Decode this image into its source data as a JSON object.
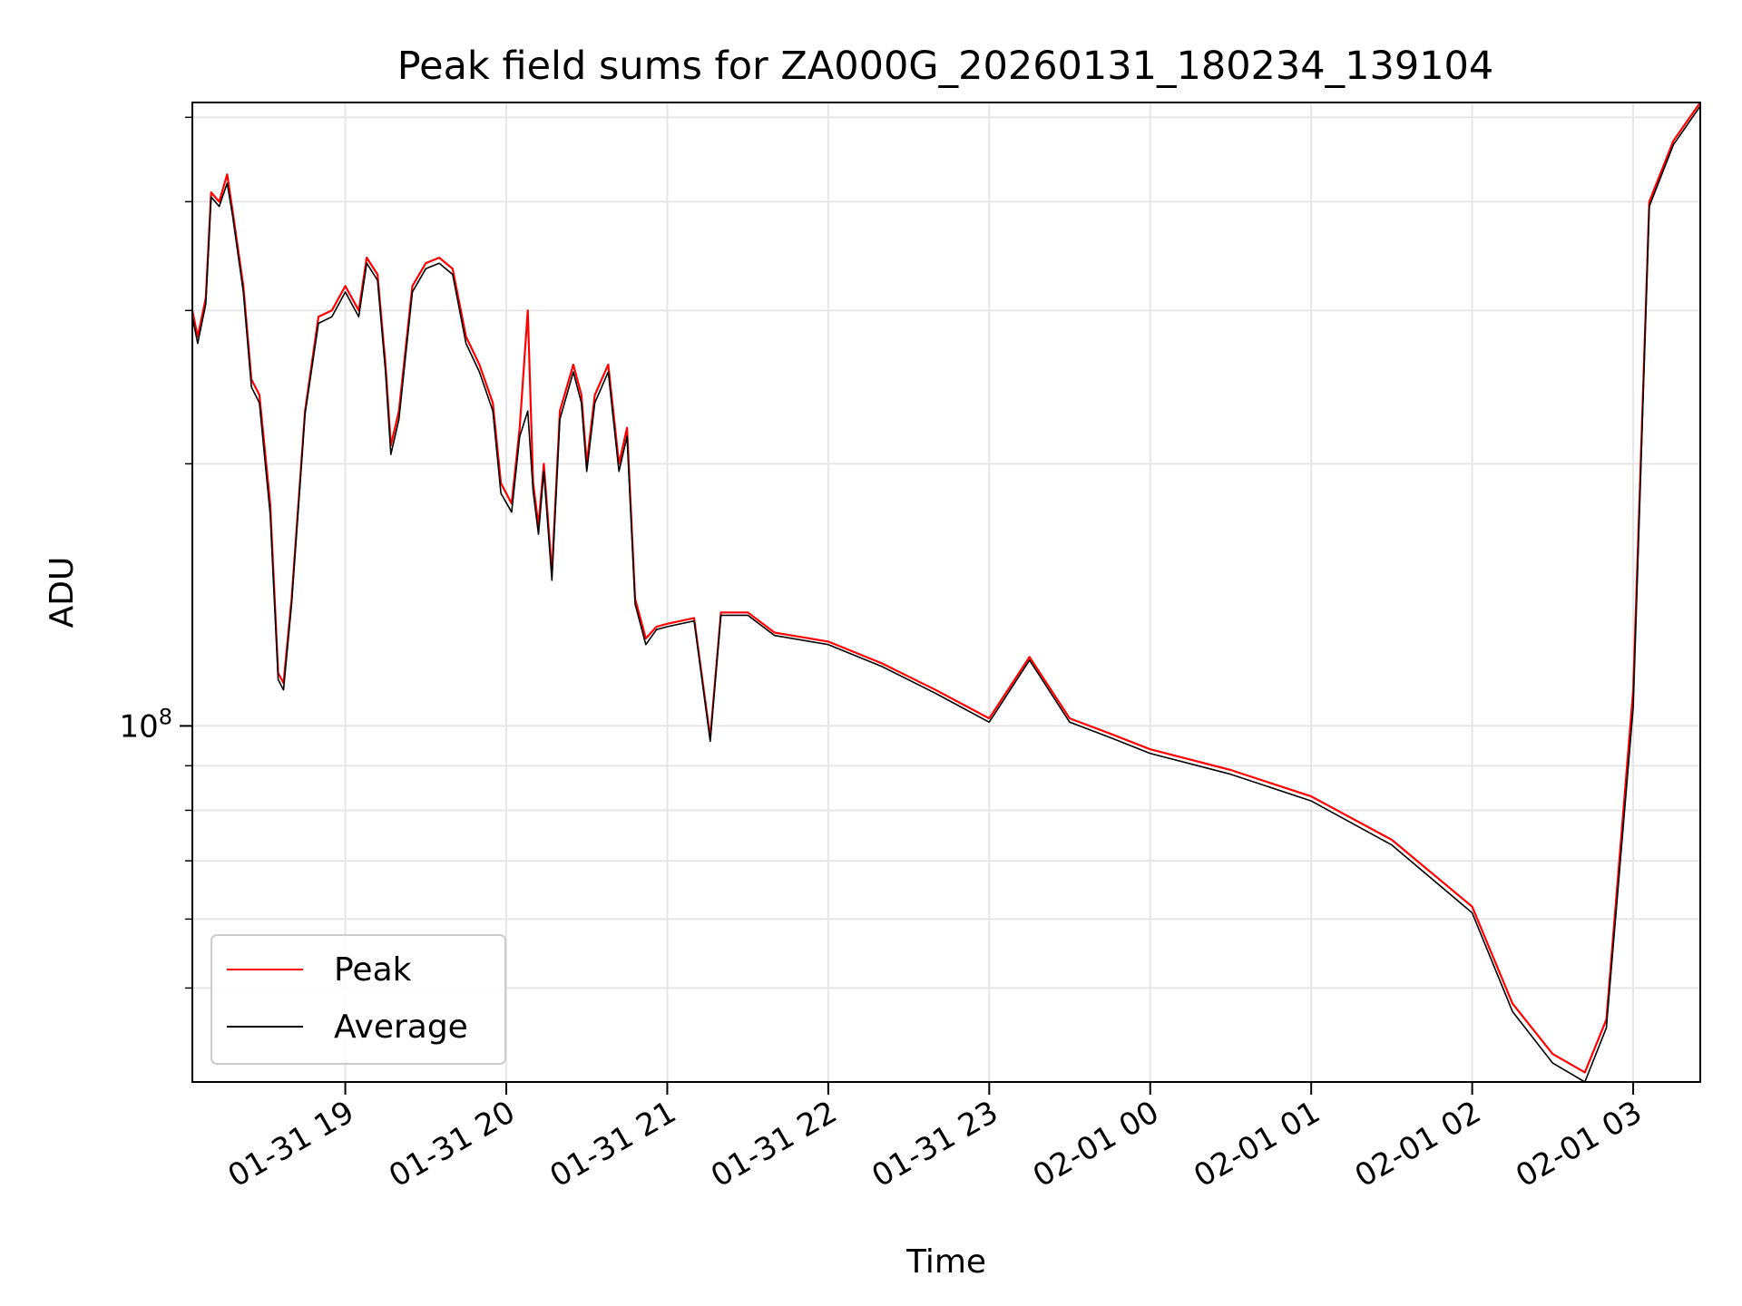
{
  "chart_data": {
    "type": "line",
    "title": "Peak field sums for ZA000G_20260131_180234_139104",
    "xlabel": "Time",
    "ylabel": "ADU",
    "yscale": "log",
    "grid": true,
    "legend_position": "lower-left",
    "xlim": [
      "2026-01-31 18:03",
      "2026-02-01 03:25"
    ],
    "ylim": [
      39000000,
      520000000
    ],
    "x_ticks": [
      {
        "value": "2026-01-31 19:00",
        "label": "01-31 19"
      },
      {
        "value": "2026-01-31 20:00",
        "label": "01-31 20"
      },
      {
        "value": "2026-01-31 21:00",
        "label": "01-31 21"
      },
      {
        "value": "2026-01-31 22:00",
        "label": "01-31 22"
      },
      {
        "value": "2026-01-31 23:00",
        "label": "01-31 23"
      },
      {
        "value": "2026-02-01 00:00",
        "label": "02-01 00"
      },
      {
        "value": "2026-02-01 01:00",
        "label": "02-01 01"
      },
      {
        "value": "2026-02-01 02:00",
        "label": "02-01 02"
      },
      {
        "value": "2026-02-01 03:00",
        "label": "02-01 03"
      }
    ],
    "y_major_ticks": [
      {
        "value": 100000000,
        "label_base": "10",
        "label_exp": "8"
      }
    ],
    "y_minor_ticks": [
      50000000,
      60000000,
      70000000,
      80000000,
      90000000,
      200000000,
      300000000,
      400000000,
      500000000
    ],
    "series": [
      {
        "name": "Peak",
        "color": "#ff0000",
        "points": [
          [
            "2026-01-31 18:03",
            300000000
          ],
          [
            "2026-01-31 18:05",
            280000000
          ],
          [
            "2026-01-31 18:08",
            310000000
          ],
          [
            "2026-01-31 18:10",
            410000000
          ],
          [
            "2026-01-31 18:13",
            400000000
          ],
          [
            "2026-01-31 18:16",
            430000000
          ],
          [
            "2026-01-31 18:18",
            390000000
          ],
          [
            "2026-01-31 18:22",
            320000000
          ],
          [
            "2026-01-31 18:25",
            250000000
          ],
          [
            "2026-01-31 18:28",
            240000000
          ],
          [
            "2026-01-31 18:32",
            180000000
          ],
          [
            "2026-01-31 18:35",
            115000000
          ],
          [
            "2026-01-31 18:37",
            112000000
          ],
          [
            "2026-01-31 18:40",
            140000000
          ],
          [
            "2026-01-31 18:45",
            230000000
          ],
          [
            "2026-01-31 18:50",
            295000000
          ],
          [
            "2026-01-31 18:55",
            300000000
          ],
          [
            "2026-01-31 19:00",
            320000000
          ],
          [
            "2026-01-31 19:05",
            300000000
          ],
          [
            "2026-01-31 19:08",
            345000000
          ],
          [
            "2026-01-31 19:12",
            330000000
          ],
          [
            "2026-01-31 19:15",
            260000000
          ],
          [
            "2026-01-31 19:17",
            210000000
          ],
          [
            "2026-01-31 19:20",
            230000000
          ],
          [
            "2026-01-31 19:25",
            320000000
          ],
          [
            "2026-01-31 19:30",
            340000000
          ],
          [
            "2026-01-31 19:35",
            345000000
          ],
          [
            "2026-01-31 19:40",
            335000000
          ],
          [
            "2026-01-31 19:45",
            280000000
          ],
          [
            "2026-01-31 19:50",
            260000000
          ],
          [
            "2026-01-31 19:55",
            235000000
          ],
          [
            "2026-01-31 19:58",
            190000000
          ],
          [
            "2026-01-31 20:02",
            180000000
          ],
          [
            "2026-01-31 20:05",
            220000000
          ],
          [
            "2026-01-31 20:08",
            300000000
          ],
          [
            "2026-01-31 20:10",
            190000000
          ],
          [
            "2026-01-31 20:12",
            170000000
          ],
          [
            "2026-01-31 20:14",
            200000000
          ],
          [
            "2026-01-31 20:17",
            150000000
          ],
          [
            "2026-01-31 20:20",
            230000000
          ],
          [
            "2026-01-31 20:25",
            260000000
          ],
          [
            "2026-01-31 20:28",
            240000000
          ],
          [
            "2026-01-31 20:30",
            200000000
          ],
          [
            "2026-01-31 20:33",
            240000000
          ],
          [
            "2026-01-31 20:38",
            260000000
          ],
          [
            "2026-01-31 20:42",
            200000000
          ],
          [
            "2026-01-31 20:45",
            220000000
          ],
          [
            "2026-01-31 20:48",
            140000000
          ],
          [
            "2026-01-31 20:52",
            126000000
          ],
          [
            "2026-01-31 20:56",
            130000000
          ],
          [
            "2026-01-31 21:00",
            131000000
          ],
          [
            "2026-01-31 21:10",
            133000000
          ],
          [
            "2026-01-31 21:16",
            97000000
          ],
          [
            "2026-01-31 21:20",
            135000000
          ],
          [
            "2026-01-31 21:30",
            135000000
          ],
          [
            "2026-01-31 21:40",
            128000000
          ],
          [
            "2026-01-31 22:00",
            125000000
          ],
          [
            "2026-01-31 22:20",
            118000000
          ],
          [
            "2026-01-31 22:40",
            110000000
          ],
          [
            "2026-01-31 23:00",
            102000000
          ],
          [
            "2026-01-31 23:15",
            120000000
          ],
          [
            "2026-01-31 23:30",
            102000000
          ],
          [
            "2026-01-31 23:45",
            98000000
          ],
          [
            "2026-02-01 00:00",
            94000000
          ],
          [
            "2026-02-01 00:30",
            89000000
          ],
          [
            "2026-02-01 01:00",
            83000000
          ],
          [
            "2026-02-01 01:30",
            74000000
          ],
          [
            "2026-02-01 02:00",
            62000000
          ],
          [
            "2026-02-01 02:15",
            48000000
          ],
          [
            "2026-02-01 02:30",
            42000000
          ],
          [
            "2026-02-01 02:42",
            40000000
          ],
          [
            "2026-02-01 02:50",
            46000000
          ],
          [
            "2026-02-01 03:00",
            110000000
          ],
          [
            "2026-02-01 03:06",
            400000000
          ],
          [
            "2026-02-01 03:15",
            470000000
          ],
          [
            "2026-02-01 03:25",
            520000000
          ]
        ]
      },
      {
        "name": "Average",
        "color": "#000000",
        "points": [
          [
            "2026-01-31 18:03",
            295000000
          ],
          [
            "2026-01-31 18:05",
            275000000
          ],
          [
            "2026-01-31 18:08",
            305000000
          ],
          [
            "2026-01-31 18:10",
            405000000
          ],
          [
            "2026-01-31 18:13",
            395000000
          ],
          [
            "2026-01-31 18:16",
            420000000
          ],
          [
            "2026-01-31 18:18",
            385000000
          ],
          [
            "2026-01-31 18:22",
            315000000
          ],
          [
            "2026-01-31 18:25",
            245000000
          ],
          [
            "2026-01-31 18:28",
            235000000
          ],
          [
            "2026-01-31 18:32",
            175000000
          ],
          [
            "2026-01-31 18:35",
            113000000
          ],
          [
            "2026-01-31 18:37",
            110000000
          ],
          [
            "2026-01-31 18:40",
            138000000
          ],
          [
            "2026-01-31 18:45",
            228000000
          ],
          [
            "2026-01-31 18:50",
            290000000
          ],
          [
            "2026-01-31 18:55",
            295000000
          ],
          [
            "2026-01-31 19:00",
            315000000
          ],
          [
            "2026-01-31 19:05",
            295000000
          ],
          [
            "2026-01-31 19:08",
            340000000
          ],
          [
            "2026-01-31 19:12",
            325000000
          ],
          [
            "2026-01-31 19:15",
            255000000
          ],
          [
            "2026-01-31 19:17",
            205000000
          ],
          [
            "2026-01-31 19:20",
            225000000
          ],
          [
            "2026-01-31 19:25",
            315000000
          ],
          [
            "2026-01-31 19:30",
            335000000
          ],
          [
            "2026-01-31 19:35",
            340000000
          ],
          [
            "2026-01-31 19:40",
            330000000
          ],
          [
            "2026-01-31 19:45",
            275000000
          ],
          [
            "2026-01-31 19:50",
            255000000
          ],
          [
            "2026-01-31 19:55",
            230000000
          ],
          [
            "2026-01-31 19:58",
            185000000
          ],
          [
            "2026-01-31 20:02",
            176000000
          ],
          [
            "2026-01-31 20:05",
            215000000
          ],
          [
            "2026-01-31 20:08",
            230000000
          ],
          [
            "2026-01-31 20:10",
            186000000
          ],
          [
            "2026-01-31 20:12",
            166000000
          ],
          [
            "2026-01-31 20:14",
            196000000
          ],
          [
            "2026-01-31 20:17",
            147000000
          ],
          [
            "2026-01-31 20:20",
            225000000
          ],
          [
            "2026-01-31 20:25",
            255000000
          ],
          [
            "2026-01-31 20:28",
            235000000
          ],
          [
            "2026-01-31 20:30",
            196000000
          ],
          [
            "2026-01-31 20:33",
            235000000
          ],
          [
            "2026-01-31 20:38",
            255000000
          ],
          [
            "2026-01-31 20:42",
            196000000
          ],
          [
            "2026-01-31 20:45",
            215000000
          ],
          [
            "2026-01-31 20:48",
            138000000
          ],
          [
            "2026-01-31 20:52",
            124000000
          ],
          [
            "2026-01-31 20:56",
            129000000
          ],
          [
            "2026-01-31 21:00",
            130000000
          ],
          [
            "2026-01-31 21:10",
            132000000
          ],
          [
            "2026-01-31 21:16",
            96000000
          ],
          [
            "2026-01-31 21:20",
            134000000
          ],
          [
            "2026-01-31 21:30",
            134000000
          ],
          [
            "2026-01-31 21:40",
            127000000
          ],
          [
            "2026-01-31 22:00",
            124000000
          ],
          [
            "2026-01-31 22:20",
            117000000
          ],
          [
            "2026-01-31 22:40",
            109000000
          ],
          [
            "2026-01-31 23:00",
            101000000
          ],
          [
            "2026-01-31 23:15",
            119000000
          ],
          [
            "2026-01-31 23:30",
            101000000
          ],
          [
            "2026-01-31 23:45",
            97000000
          ],
          [
            "2026-02-01 00:00",
            93000000
          ],
          [
            "2026-02-01 00:30",
            88000000
          ],
          [
            "2026-02-01 01:00",
            82000000
          ],
          [
            "2026-02-01 01:30",
            73000000
          ],
          [
            "2026-02-01 02:00",
            61000000
          ],
          [
            "2026-02-01 02:15",
            47000000
          ],
          [
            "2026-02-01 02:30",
            41000000
          ],
          [
            "2026-02-01 02:42",
            39000000
          ],
          [
            "2026-02-01 02:50",
            45000000
          ],
          [
            "2026-02-01 03:00",
            105000000
          ],
          [
            "2026-02-01 03:06",
            395000000
          ],
          [
            "2026-02-01 03:15",
            465000000
          ],
          [
            "2026-02-01 03:25",
            515000000
          ]
        ]
      }
    ]
  }
}
